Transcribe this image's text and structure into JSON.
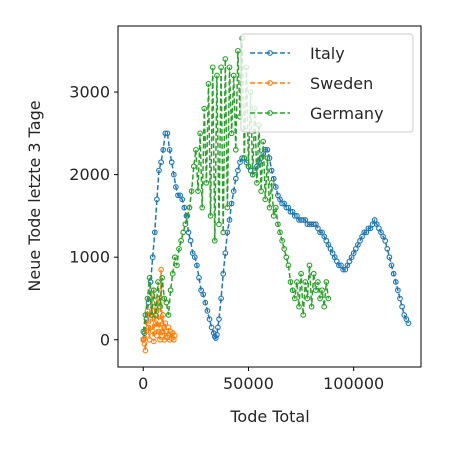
{
  "chart_data": {
    "type": "line",
    "title": "",
    "xlabel": "Tode Total",
    "ylabel": "Neue Tode letzte 3 Tage",
    "xlim": [
      -12000,
      132000
    ],
    "ylim": [
      -330,
      3800
    ],
    "xticks": [
      0,
      50000,
      100000
    ],
    "xtick_labels": [
      "0",
      "50000",
      "100000"
    ],
    "yticks": [
      0,
      1000,
      2000,
      3000
    ],
    "ytick_labels": [
      "0",
      "1000",
      "2000",
      "3000"
    ],
    "grid": false,
    "legend_position": "top-right",
    "series": [
      {
        "name": "Italy",
        "color": "#1f77b4",
        "x": [
          0,
          600,
          1500,
          2500,
          3500,
          4500,
          5500,
          6500,
          7500,
          8500,
          9500,
          10500,
          11500,
          12500,
          13500,
          14500,
          15500,
          16500,
          17500,
          18500,
          19500,
          20500,
          21500,
          22500,
          23500,
          24500,
          25500,
          26500,
          27500,
          28500,
          29500,
          30500,
          31500,
          32500,
          33500,
          34000,
          34500,
          35000,
          35500,
          36000,
          37000,
          38000,
          39000,
          40000,
          41000,
          42000,
          43000,
          44000,
          45000,
          46000,
          47000,
          48000,
          49000,
          50000,
          51000,
          52000,
          53000,
          54000,
          55000,
          56000,
          57000,
          58000,
          59000,
          60000,
          61000,
          62000,
          63000,
          64000,
          65000,
          66000,
          67000,
          68000,
          69000,
          70000,
          71000,
          72000,
          73000,
          74000,
          75000,
          76000,
          77000,
          78000,
          79000,
          80000,
          81000,
          82000,
          83000,
          84000,
          85000,
          86000,
          87000,
          88000,
          89000,
          90000,
          91000,
          92000,
          93000,
          94000,
          95000,
          96000,
          97000,
          98000,
          99000,
          100000,
          101000,
          102000,
          103000,
          104000,
          105000,
          106000,
          107000,
          108000,
          109000,
          110000,
          111000,
          112000,
          113000,
          114000,
          115000,
          116000,
          117000,
          118000,
          119000,
          120000,
          121000,
          122000,
          123000,
          124000,
          125000,
          126000
        ],
        "y": [
          5,
          80,
          250,
          450,
          700,
          1000,
          1300,
          1700,
          2050,
          2150,
          2300,
          2500,
          2500,
          2300,
          2150,
          2000,
          1850,
          1750,
          1750,
          1700,
          1600,
          1500,
          1300,
          1200,
          1050,
          1000,
          900,
          750,
          600,
          550,
          450,
          350,
          250,
          150,
          80,
          40,
          20,
          60,
          150,
          250,
          500,
          800,
          1050,
          1300,
          1450,
          1650,
          1800,
          1950,
          2050,
          2150,
          2200,
          2200,
          2150,
          2100,
          2050,
          2000,
          2050,
          2100,
          2150,
          2200,
          2250,
          2300,
          2300,
          2200,
          2050,
          1950,
          1850,
          1750,
          1700,
          1650,
          1650,
          1600,
          1600,
          1550,
          1550,
          1500,
          1500,
          1450,
          1450,
          1450,
          1450,
          1400,
          1400,
          1400,
          1400,
          1400,
          1350,
          1300,
          1300,
          1250,
          1200,
          1150,
          1100,
          1050,
          1000,
          950,
          900,
          900,
          850,
          850,
          900,
          950,
          1000,
          1050,
          1100,
          1150,
          1200,
          1250,
          1300,
          1300,
          1350,
          1350,
          1400,
          1450,
          1400,
          1350,
          1300,
          1250,
          1200,
          1100,
          1000,
          900,
          800,
          700,
          600,
          500,
          400,
          300,
          250,
          200
        ]
      },
      {
        "name": "Sweden",
        "color": "#ff7f0e",
        "x": [
          0,
          300,
          600,
          1000,
          1500,
          2000,
          2500,
          3000,
          3500,
          4000,
          4500,
          5000,
          5500,
          6000,
          6500,
          7000,
          7500,
          8000,
          8500,
          9000,
          9500,
          10000,
          10500,
          11000,
          11500,
          12000,
          12500,
          13000,
          13500,
          14000,
          14500,
          15000
        ],
        "y": [
          0,
          10,
          -50,
          -130,
          100,
          350,
          150,
          0,
          300,
          600,
          100,
          -20,
          400,
          200,
          50,
          500,
          100,
          0,
          850,
          50,
          300,
          0,
          200,
          100,
          30,
          150,
          0,
          100,
          20,
          80,
          0,
          50
        ]
      },
      {
        "name": "Germany",
        "color": "#2ca02c",
        "x": [
          0,
          1000,
          2000,
          3000,
          4000,
          5000,
          6000,
          7000,
          8000,
          9000,
          10000,
          11000,
          12000,
          13000,
          14000,
          15000,
          16000,
          17000,
          18000,
          19000,
          20000,
          21000,
          22000,
          23000,
          24000,
          25000,
          26000,
          27000,
          28000,
          29000,
          30000,
          31000,
          32000,
          33000,
          34000,
          35000,
          36000,
          37000,
          38000,
          39000,
          40000,
          41000,
          42000,
          43000,
          44000,
          45000,
          46000,
          47000,
          48000,
          49000,
          50000,
          51000,
          52000,
          53000,
          54000,
          55000,
          56000,
          57000,
          58000,
          59000,
          60000,
          61000,
          62000,
          63000,
          64000,
          65000,
          66000,
          67000,
          68000,
          69000,
          70000,
          71000,
          72000,
          73000,
          74000,
          75000,
          76000,
          77000,
          78000,
          79000,
          80000,
          81000,
          82000,
          83000,
          84000,
          85000,
          86000,
          87000,
          88000
        ],
        "y": [
          100,
          300,
          500,
          750,
          300,
          600,
          300,
          700,
          400,
          750,
          500,
          450,
          300,
          600,
          800,
          1000,
          900,
          1100,
          1200,
          1300,
          1400,
          1500,
          1600,
          1800,
          2100,
          2300,
          1800,
          2500,
          1600,
          2800,
          1900,
          3100,
          1500,
          3300,
          1200,
          3200,
          1400,
          3300,
          1300,
          3400,
          1600,
          3300,
          2500,
          3200,
          2300,
          3500,
          2700,
          3650,
          2200,
          3300,
          2100,
          3000,
          2000,
          2800,
          1900,
          2600,
          1800,
          2400,
          1700,
          2200,
          1600,
          1900,
          1500,
          1600,
          1400,
          1300,
          1200,
          1100,
          1000,
          900,
          700,
          600,
          500,
          700,
          400,
          800,
          300,
          700,
          500,
          900,
          400,
          800,
          600,
          700,
          500,
          600,
          400,
          700,
          500
        ]
      }
    ]
  }
}
